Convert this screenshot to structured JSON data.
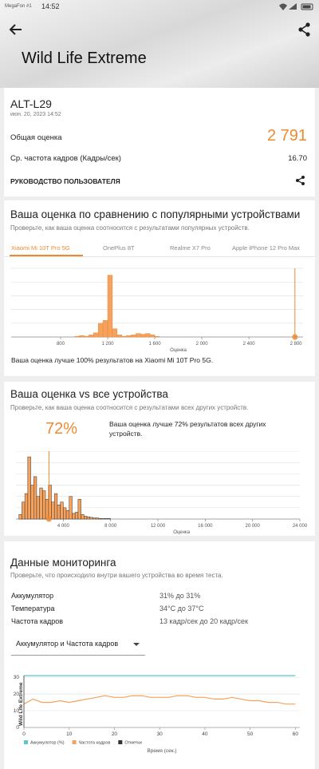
{
  "status_bar": {
    "carrier": "MegaFon #1",
    "time": "14:52"
  },
  "header": {
    "title": "Wild Life Extreme"
  },
  "result": {
    "device": "ALT-L29",
    "date": "июн. 20, 2023 14:52",
    "score_label": "Общая оценка",
    "score": "2 791",
    "fps_label": "Ср. частота кадров (Кадры/сек)",
    "fps": "16.70",
    "guide": "РУКОВОДСТВО ПОЛЬЗОВАТЕЛЯ"
  },
  "comparison": {
    "title": "Ваша оценка по сравнению с популярными устройствами",
    "subtitle": "Проверьте, как ваша оценка соотносится с результатами популярных устройств.",
    "tabs": [
      "Xiaomi Mi 10T Pro 5G",
      "OnePlus 8T",
      "Realme X7 Pro",
      "Apple iPhone 12 Pro Max"
    ],
    "chart": {
      "type": "histogram",
      "color": "#f7a25c",
      "marker_color": "#f08a30",
      "bins": [
        920,
        960,
        1000,
        1040,
        1080,
        1120,
        1160,
        1200,
        1240,
        1280,
        1320,
        1360,
        1400,
        1440,
        1480,
        1520,
        1560,
        1600,
        1640
      ],
      "counts": [
        1,
        2,
        1,
        3,
        6,
        20,
        24,
        90,
        12,
        3,
        1,
        2,
        3,
        5,
        4,
        5,
        3,
        1
      ],
      "xlim": [
        380,
        2860
      ],
      "xticks": [
        800,
        {
          "value": 1200,
          "label": "1 200"
        },
        {
          "value": 1600,
          "label": "1 600"
        },
        {
          "value": 2000,
          "label": "2 000"
        },
        {
          "value": 2400,
          "label": "2 400"
        },
        {
          "value": 2800,
          "label": "2 800"
        }
      ],
      "ylim": [
        0,
        100
      ],
      "yticks": [
        0,
        20,
        40,
        60,
        80,
        100
      ],
      "grid": true,
      "xlabel": "Оценка",
      "marker": 2791
    },
    "note": "Ваша оценка лучше 100% результатов на Xiaomi Mi 10T Pro 5G."
  },
  "all_devices": {
    "title": "Ваша оценка vs все устройства",
    "subtitle": "Проверьте, как ваша оценка соотносится с результатами всех других устройств.",
    "percent": "72%",
    "note": "Ваша оценка лучше 72% результатов всех других устройств.",
    "chart": {
      "type": "histogram",
      "color": "#f7a25c",
      "marker_color": "#f08a30",
      "bins": [
        0,
        250,
        500,
        750,
        1000,
        1250,
        1500,
        1750,
        2000,
        2250,
        2500,
        2750,
        3000,
        3250,
        3500,
        3750,
        4000,
        4250,
        4500,
        4750,
        5000,
        5250,
        5500,
        5750,
        6000,
        6250,
        6500,
        6750,
        7000,
        7250,
        7500,
        7750,
        8000
      ],
      "counts": [
        0,
        8,
        30,
        45,
        110,
        60,
        75,
        40,
        55,
        50,
        35,
        60,
        30,
        45,
        25,
        30,
        20,
        15,
        40,
        10,
        12,
        35,
        8,
        5,
        4,
        3,
        2,
        2,
        1,
        1,
        1,
        1
      ],
      "xlim": [
        0,
        24000
      ],
      "xticks": [
        {
          "value": 4000,
          "label": "4 000"
        },
        {
          "value": 8000,
          "label": "8 000"
        },
        {
          "value": 12000,
          "label": "12 000"
        },
        {
          "value": 16000,
          "label": "16 000"
        },
        {
          "value": 20000,
          "label": "20 000"
        },
        {
          "value": 24000,
          "label": "24 000"
        }
      ],
      "ylim": [
        0,
        120
      ],
      "yticks": [
        0,
        20,
        40,
        60,
        80,
        100,
        120
      ],
      "grid": true,
      "xlabel": "Оценка",
      "marker": 2791
    }
  },
  "monitoring": {
    "title": "Данные мониторинга",
    "subtitle": "Проверьте, что происходило внутри вашего устройства во время теста.",
    "rows": [
      [
        "Аккумулятор",
        "31% до 31%"
      ],
      [
        "Температура",
        "34°C до 37°C"
      ],
      [
        "Частота кадров",
        "13 кадр/сек до 20 кадр/сек"
      ]
    ],
    "dropdown": "Аккумулятор и Частота кадров",
    "chart": {
      "type": "line",
      "xlabel": "Время (сек.)",
      "x": [
        0,
        2,
        4,
        6,
        8,
        10,
        12,
        14,
        16,
        18,
        20,
        22,
        24,
        26,
        28,
        30,
        32,
        34,
        36,
        38,
        40,
        42,
        44,
        46,
        48,
        50,
        52,
        54,
        56,
        58,
        60
      ],
      "series": [
        {
          "name": "Аккумулятор (%)",
          "color": "#5cc6c9",
          "values": [
            31,
            31,
            31,
            31,
            31,
            31,
            31,
            31,
            31,
            31,
            31,
            31,
            31,
            31,
            31,
            31,
            31,
            31,
            31,
            31,
            31,
            31,
            31,
            31,
            31,
            31,
            31,
            31,
            31,
            31,
            31
          ]
        },
        {
          "name": "Частота кадров",
          "color": "#f7a25c",
          "values": [
            14,
            17,
            15,
            15,
            16,
            15,
            16,
            17,
            18,
            19,
            18,
            18,
            19,
            19,
            18,
            18,
            18,
            19,
            19,
            18,
            18,
            17,
            17,
            18,
            17,
            16,
            16,
            15,
            15,
            14,
            14
          ]
        }
      ],
      "marks": {
        "name": "Отметки",
        "color": "#333333",
        "x": [
          0
        ],
        "labels": [
          "Wild Life Extreme"
        ]
      },
      "xlim": [
        0,
        61
      ],
      "xticks": [
        0,
        10,
        20,
        30,
        40,
        50,
        60
      ],
      "ylim": [
        0,
        32
      ],
      "yticks": [
        0,
        10,
        20,
        30
      ],
      "grid": true
    }
  }
}
